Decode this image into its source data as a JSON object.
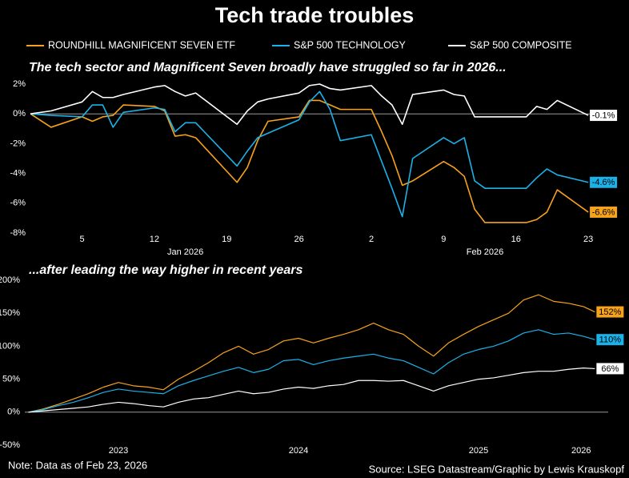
{
  "title": "Tech trade troubles",
  "note": "Note: Data as of Feb 23, 2026",
  "source": "Source: LSEG Datastream/Graphic by Lewis Krauskopf",
  "chart_data": [
    {
      "type": "line",
      "title": "The tech sector and Magnificent Seven broadly have struggled so far in 2026...",
      "x": [
        "2025-12-31",
        "2026-01-02",
        "2026-01-05",
        "2026-01-06",
        "2026-01-07",
        "2026-01-08",
        "2026-01-09",
        "2026-01-12",
        "2026-01-13",
        "2026-01-14",
        "2026-01-15",
        "2026-01-16",
        "2026-01-20",
        "2026-01-21",
        "2026-01-22",
        "2026-01-23",
        "2026-01-26",
        "2026-01-27",
        "2026-01-28",
        "2026-01-29",
        "2026-01-30",
        "2026-02-02",
        "2026-02-03",
        "2026-02-04",
        "2026-02-05",
        "2026-02-06",
        "2026-02-09",
        "2026-02-10",
        "2026-02-11",
        "2026-02-12",
        "2026-02-13",
        "2026-02-17",
        "2026-02-18",
        "2026-02-19",
        "2026-02-20",
        "2026-02-23"
      ],
      "series": [
        {
          "name": "ROUNDHILL MAGNIFICENT SEVEN ETF",
          "color": "#f7a21b",
          "values": [
            0,
            -0.9,
            -0.2,
            -0.5,
            -0.2,
            -0.1,
            0.6,
            0.5,
            0.2,
            -1.5,
            -1.4,
            -1.6,
            -4.6,
            -3.6,
            -1.8,
            -0.5,
            -0.2,
            0.9,
            0.9,
            0.6,
            0.3,
            0.3,
            -1.2,
            -2.8,
            -4.8,
            -4.5,
            -3.2,
            -3.6,
            -4.2,
            -6.4,
            -7.3,
            -7.3,
            -7.1,
            -6.6,
            -5.1,
            -6.6
          ],
          "value_labels": [
            null,
            null,
            null,
            null,
            null,
            null,
            null,
            null,
            null,
            null,
            null,
            null,
            null,
            null,
            null,
            null,
            null,
            null,
            null,
            null,
            null,
            null,
            null,
            null,
            null,
            null,
            null,
            null,
            null,
            null,
            null,
            null,
            null,
            null,
            null,
            "-6.6%"
          ]
        },
        {
          "name": "S&P 500 TECHNOLOGY",
          "color": "#1ab2e8",
          "values": [
            0,
            -0.1,
            -0.2,
            0.6,
            0.6,
            -0.9,
            0.1,
            0.4,
            0.3,
            -1.2,
            -0.6,
            -0.6,
            -3.5,
            -2.5,
            -1.6,
            -1.3,
            -0.4,
            0.8,
            1.5,
            0.3,
            -1.8,
            -1.4,
            -3.2,
            -5.0,
            -6.9,
            -3.0,
            -1.6,
            -2.0,
            -1.6,
            -4.5,
            -5.0,
            -5.0,
            -4.3,
            -3.7,
            -4.1,
            -4.6
          ],
          "value_labels": [
            null,
            null,
            null,
            null,
            null,
            null,
            null,
            null,
            null,
            null,
            null,
            null,
            null,
            null,
            null,
            null,
            null,
            null,
            null,
            null,
            null,
            null,
            null,
            null,
            null,
            null,
            null,
            null,
            null,
            null,
            null,
            null,
            null,
            null,
            null,
            "-4.6%"
          ]
        },
        {
          "name": "S&P 500 COMPOSITE",
          "color": "#ffffff",
          "values": [
            0,
            0.2,
            0.8,
            1.5,
            1.1,
            1.1,
            1.3,
            1.8,
            1.9,
            1.5,
            1.2,
            1.4,
            -0.7,
            0.2,
            0.8,
            1.0,
            1.4,
            1.9,
            2.0,
            1.7,
            1.6,
            1.9,
            1.2,
            0.6,
            -0.7,
            1.3,
            1.6,
            1.3,
            1.2,
            -0.2,
            -0.2,
            -0.2,
            0.5,
            0.3,
            0.9,
            -0.1
          ],
          "value_labels": [
            null,
            null,
            null,
            null,
            null,
            null,
            null,
            null,
            null,
            null,
            null,
            null,
            null,
            null,
            null,
            null,
            null,
            null,
            null,
            null,
            null,
            null,
            null,
            null,
            null,
            null,
            null,
            null,
            null,
            null,
            null,
            null,
            null,
            null,
            null,
            "-0.1%"
          ]
        }
      ],
      "xlim": [
        "2025-12-31",
        "2026-02-24"
      ],
      "xticks": [
        {
          "value": "2026-01-05",
          "label": "5"
        },
        {
          "value": "2026-01-12",
          "label": "12"
        },
        {
          "value": "2026-01-19",
          "label": "19"
        },
        {
          "value": "2026-01-26",
          "label": "26"
        },
        {
          "value": "2026-02-02",
          "label": "2"
        },
        {
          "value": "2026-02-09",
          "label": "9"
        },
        {
          "value": "2026-02-16",
          "label": "16"
        },
        {
          "value": "2026-02-23",
          "label": "23"
        }
      ],
      "x_period_labels": [
        {
          "value": "2026-01-15",
          "label": "Jan 2026"
        },
        {
          "value": "2026-02-13",
          "label": "Feb 2026"
        }
      ],
      "ylim": [
        -8,
        2
      ],
      "yticks": [
        {
          "value": 2,
          "label": "2%"
        },
        {
          "value": 0,
          "label": "0%"
        },
        {
          "value": -2,
          "label": "-2%"
        },
        {
          "value": -4,
          "label": "-4%"
        },
        {
          "value": -6,
          "label": "-6%"
        },
        {
          "value": -8,
          "label": "-8%"
        }
      ]
    },
    {
      "type": "line",
      "title": "...after leading the way higher in recent years",
      "x": [
        2023,
        2023.083,
        2023.167,
        2023.25,
        2023.333,
        2023.417,
        2023.5,
        2023.583,
        2023.667,
        2023.75,
        2023.833,
        2023.917,
        2024,
        2024.083,
        2024.167,
        2024.25,
        2024.333,
        2024.417,
        2024.5,
        2024.583,
        2024.667,
        2024.75,
        2024.833,
        2024.917,
        2025,
        2025.083,
        2025.167,
        2025.25,
        2025.333,
        2025.417,
        2025.5,
        2025.583,
        2025.667,
        2025.75,
        2025.833,
        2025.917,
        2026,
        2026.083,
        2026.146
      ],
      "series": [
        {
          "name": "ROUNDHILL MAGNIFICENT SEVEN ETF",
          "color": "#f7a21b",
          "values": [
            0,
            5,
            12,
            20,
            28,
            38,
            45,
            40,
            38,
            34,
            50,
            62,
            75,
            90,
            100,
            88,
            95,
            108,
            112,
            105,
            112,
            118,
            125,
            135,
            125,
            118,
            100,
            85,
            105,
            118,
            130,
            140,
            150,
            170,
            178,
            168,
            165,
            160,
            152
          ],
          "value_labels": [
            null,
            null,
            null,
            null,
            null,
            null,
            null,
            null,
            null,
            null,
            null,
            null,
            null,
            null,
            null,
            null,
            null,
            null,
            null,
            null,
            null,
            null,
            null,
            null,
            null,
            null,
            null,
            null,
            null,
            null,
            null,
            null,
            null,
            null,
            null,
            null,
            null,
            null,
            "152%"
          ]
        },
        {
          "name": "S&P 500 TECHNOLOGY",
          "color": "#1ab2e8",
          "values": [
            0,
            4,
            10,
            15,
            22,
            30,
            35,
            32,
            30,
            28,
            40,
            48,
            55,
            62,
            68,
            60,
            65,
            78,
            80,
            72,
            78,
            82,
            85,
            88,
            82,
            78,
            68,
            58,
            75,
            88,
            95,
            100,
            108,
            120,
            125,
            118,
            120,
            115,
            110
          ],
          "value_labels": [
            null,
            null,
            null,
            null,
            null,
            null,
            null,
            null,
            null,
            null,
            null,
            null,
            null,
            null,
            null,
            null,
            null,
            null,
            null,
            null,
            null,
            null,
            null,
            null,
            null,
            null,
            null,
            null,
            null,
            null,
            null,
            null,
            null,
            null,
            null,
            null,
            null,
            null,
            "110%"
          ]
        },
        {
          "name": "S&P 500 COMPOSITE",
          "color": "#ffffff",
          "values": [
            0,
            2,
            4,
            6,
            8,
            12,
            15,
            13,
            10,
            8,
            15,
            20,
            22,
            27,
            32,
            28,
            30,
            35,
            38,
            36,
            40,
            42,
            48,
            48,
            47,
            48,
            40,
            32,
            40,
            45,
            50,
            52,
            56,
            60,
            62,
            62,
            65,
            67,
            66
          ],
          "value_labels": [
            null,
            null,
            null,
            null,
            null,
            null,
            null,
            null,
            null,
            null,
            null,
            null,
            null,
            null,
            null,
            null,
            null,
            null,
            null,
            null,
            null,
            null,
            null,
            null,
            null,
            null,
            null,
            null,
            null,
            null,
            null,
            null,
            null,
            null,
            null,
            null,
            null,
            null,
            "66%"
          ]
        }
      ],
      "xlim": [
        2022.98,
        2026.22
      ],
      "xticks": [
        {
          "value": 2023.5,
          "label": "2023"
        },
        {
          "value": 2024.5,
          "label": "2024"
        },
        {
          "value": 2025.5,
          "label": "2025"
        },
        {
          "value": 2026.07,
          "label": "2026"
        }
      ],
      "ylim": [
        -50,
        200
      ],
      "yticks": [
        {
          "value": 200,
          "label": "200%"
        },
        {
          "value": 150,
          "label": "150%"
        },
        {
          "value": 100,
          "label": "100%"
        },
        {
          "value": 50,
          "label": "50%"
        },
        {
          "value": 0,
          "label": "0%"
        },
        {
          "value": -50,
          "label": "-50%"
        }
      ]
    }
  ]
}
